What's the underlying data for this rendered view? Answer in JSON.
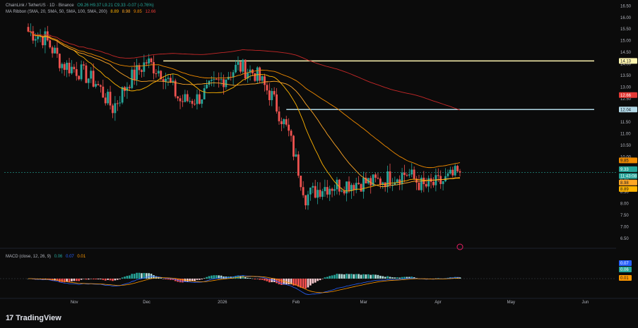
{
  "legend": {
    "symbol": "ChainLink / TetherUS · 1D · Binance",
    "ohlc": "O9.26  H9.37  L9.21  C9.33  -0.07 (-0.76%)",
    "ma_ribbon_label": "MA Ribbon (SMA, 20, SMA, 50, SMA, 100, SMA, 200)",
    "ma_ribbon_values": [
      "8.89",
      "8.98",
      "9.85",
      "12.66"
    ],
    "macd_label": "MACD (close, 12, 26, 9)",
    "macd_values": [
      "0.06",
      "0.07",
      "0.01"
    ]
  },
  "price_axis": {
    "ticks": [
      "16.50",
      "16.00",
      "15.50",
      "15.00",
      "14.50",
      "14.00",
      "13.50",
      "13.00",
      "12.50",
      "12.00",
      "11.50",
      "11.00",
      "10.50",
      "10.00",
      "9.50",
      "9.00",
      "8.50",
      "8.00",
      "7.50",
      "7.00",
      "6.50"
    ]
  },
  "price_badges": [
    {
      "text": "14.13",
      "bg": "#fff6b0",
      "fg": "#131722"
    },
    {
      "text": "12.66",
      "bg": "#e53935",
      "fg": "#ffffff"
    },
    {
      "text": "12.04",
      "bg": "#b2d8e6",
      "fg": "#131722"
    },
    {
      "text": "9.85",
      "bg": "#ef8a00",
      "fg": "#131722"
    },
    {
      "text": "9.33",
      "bg": "#26a69a",
      "fg": "#ffffff"
    },
    {
      "text": "11:43:08",
      "bg": "#26a69a",
      "fg": "#ffffff"
    },
    {
      "text": "8.98",
      "bg": "#ffa726",
      "fg": "#131722"
    },
    {
      "text": "8.89",
      "bg": "#ffb300",
      "fg": "#131722"
    }
  ],
  "macd_badges": [
    {
      "text": "0.07",
      "bg": "#2962ff",
      "fg": "#ffffff"
    },
    {
      "text": "0.06",
      "bg": "#26a69a",
      "fg": "#ffffff"
    },
    {
      "text": "0.01",
      "bg": "#ff9800",
      "fg": "#131722"
    }
  ],
  "time_axis": [
    "Nov",
    "Dec",
    "2026",
    "Feb",
    "Mar",
    "Apr",
    "May",
    "Jun"
  ],
  "brand": "TradingView",
  "colors": {
    "background": "#0b0b0b",
    "up": "#26a69a",
    "down": "#ef5350",
    "hist_pos": "#26a69a",
    "hist_pos_light": "#b2dfdb",
    "hist_neg": "#ff5252",
    "hist_neg_light": "#ffcdd2",
    "macd_line": "#2962ff",
    "signal_line": "#ff9800",
    "sma20": "#ffb300",
    "sma50": "#ffa726",
    "sma100": "#ef8a00",
    "sma200": "#c62828",
    "level_high": "#fff6b0",
    "level_low": "#b2d8e6"
  },
  "chart_data": {
    "type": "candlestick",
    "symbol": "LINK/USDT",
    "interval": "1D",
    "x_range": [
      "2025-10-13",
      "2026-04-10"
    ],
    "ylim": [
      6.25,
      16.6
    ],
    "close_series": [
      {
        "date": "2025-10-13",
        "close": 15.4
      },
      {
        "date": "2025-10-20",
        "close": 15.1
      },
      {
        "date": "2025-10-27",
        "close": 14.0
      },
      {
        "date": "2025-11-03",
        "close": 13.7
      },
      {
        "date": "2025-11-10",
        "close": 13.2
      },
      {
        "date": "2025-11-17",
        "close": 12.1
      },
      {
        "date": "2025-11-24",
        "close": 13.3
      },
      {
        "date": "2025-12-01",
        "close": 14.1
      },
      {
        "date": "2025-12-08",
        "close": 13.6
      },
      {
        "date": "2025-12-15",
        "close": 12.4
      },
      {
        "date": "2025-12-22",
        "close": 12.5
      },
      {
        "date": "2026-01-01",
        "close": 13.3
      },
      {
        "date": "2026-01-08",
        "close": 13.9
      },
      {
        "date": "2026-01-15",
        "close": 13.6
      },
      {
        "date": "2026-01-22",
        "close": 12.6
      },
      {
        "date": "2026-01-29",
        "close": 11.0
      },
      {
        "date": "2026-02-05",
        "close": 8.3
      },
      {
        "date": "2026-02-12",
        "close": 8.7
      },
      {
        "date": "2026-02-19",
        "close": 8.8
      },
      {
        "date": "2026-02-26",
        "close": 8.9
      },
      {
        "date": "2026-03-05",
        "close": 8.9
      },
      {
        "date": "2026-03-12",
        "close": 9.1
      },
      {
        "date": "2026-03-19",
        "close": 9.3
      },
      {
        "date": "2026-03-26",
        "close": 8.7
      },
      {
        "date": "2026-04-02",
        "close": 8.9
      },
      {
        "date": "2026-04-10",
        "close": 9.33
      }
    ],
    "last": {
      "open": 9.26,
      "high": 9.37,
      "low": 9.21,
      "close": 9.33,
      "change": -0.07,
      "change_pct": -0.76
    },
    "horizontal_levels": [
      {
        "value": 14.13,
        "from": "2025-12-08",
        "to": "2026-04-10"
      },
      {
        "value": 12.04,
        "from": "2026-01-28",
        "to": "2026-04-10"
      }
    ],
    "moving_averages": [
      {
        "name": "SMA 20",
        "last": 8.89
      },
      {
        "name": "SMA 50",
        "last": 8.98
      },
      {
        "name": "SMA 100",
        "last": 9.85
      },
      {
        "name": "SMA 200",
        "last": 12.66
      }
    ],
    "macd": {
      "params": "12, 26, 9",
      "histogram": 0.06,
      "macd": 0.07,
      "signal": 0.01
    }
  }
}
